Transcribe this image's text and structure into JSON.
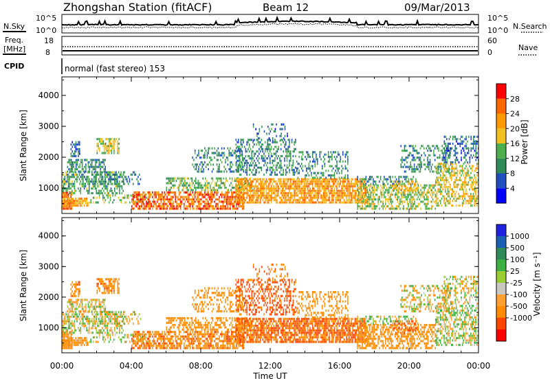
{
  "header": {
    "station": "Zhongshan Station (fitACF)",
    "beam": "Beam 12",
    "date": "09/Mar/2013"
  },
  "summary": {
    "nsky_label": "N.Sky",
    "nsearch_label": "N.Search",
    "freq_label_1": "Freq.",
    "freq_label_2": "[MHz]",
    "nave_label": "Nave",
    "cpid_label": "CPID",
    "cpid_text": "normal (fast stereo) 153",
    "noise_ticks": [
      "10^5",
      "10^0"
    ],
    "freq_ticks": [
      "18",
      "8"
    ],
    "nave_ticks": [
      "60",
      "0"
    ]
  },
  "colors": {
    "power_scale": [
      "#0000ff",
      "#2050c0",
      "#2e8b57",
      "#4cae4c",
      "#f0c020",
      "#ff9900",
      "#ff6600",
      "#ff0000"
    ],
    "velocity_scale": [
      "#ff0000",
      "#ff4500",
      "#ff8c00",
      "#ffa030",
      "#c8c8c0",
      "#9acd32",
      "#3cb043",
      "#2e8b57",
      "#1a5fb4",
      "#2020e0"
    ]
  },
  "chart_data": [
    {
      "type": "heatmap",
      "panel": "power",
      "ylabel": "Slant Range [km]",
      "yticks": [
        "4000",
        "3000",
        "2000",
        "1000"
      ],
      "ylim": [
        180,
        4600
      ],
      "xticks": [
        "00:00",
        "04:00",
        "08:00",
        "12:00",
        "16:00",
        "20:00",
        "00:00"
      ],
      "colorbar": {
        "label": "Power [dB]",
        "ticks": [
          "28",
          "24",
          "20",
          "16",
          "12",
          "8",
          "4"
        ],
        "range": [
          0,
          32
        ]
      }
    },
    {
      "type": "heatmap",
      "panel": "velocity",
      "ylabel": "Slant Range [km]",
      "yticks": [
        "4000",
        "3000",
        "2000",
        "1000"
      ],
      "ylim": [
        180,
        4600
      ],
      "xticks": [
        "00:00",
        "04:00",
        "08:00",
        "12:00",
        "16:00",
        "20:00",
        "00:00"
      ],
      "xlabel": "Time UT",
      "colorbar": {
        "label": "Velocity [m s⁻¹]",
        "ticks": [
          "1000",
          "500",
          "100",
          "25",
          "-25",
          "-100",
          "-500",
          "-1000"
        ],
        "range": [
          -1250,
          1250
        ]
      }
    }
  ]
}
